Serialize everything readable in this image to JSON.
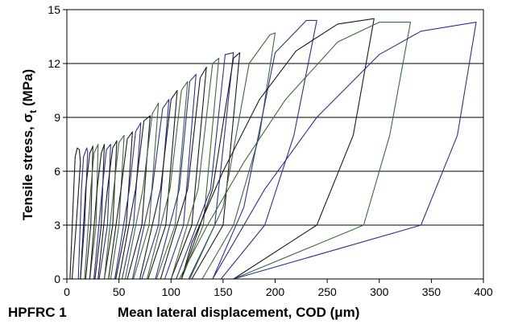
{
  "chart_data": {
    "type": "line",
    "title": "",
    "corner_label": "HPFRC 1",
    "xlabel": "Mean lateral displacement, COD (μm)",
    "ylabel_main": "Tensile stress, σ",
    "ylabel_sub": "t",
    "ylabel_unit": " (MPa)",
    "xlim": [
      0,
      400
    ],
    "ylim": [
      0,
      15
    ],
    "xticks": [
      0,
      50,
      100,
      150,
      200,
      250,
      300,
      350,
      400
    ],
    "yticks": [
      0,
      3,
      6,
      9,
      12,
      15
    ],
    "grid": "horizontal",
    "legend": "none",
    "colors": {
      "black": "#1a1a1a",
      "green": "#3d6b3a",
      "blue": "#2b2fa0",
      "grid": "#000000"
    },
    "series": [
      {
        "color": "black",
        "values": [
          [
            3,
            0
          ],
          [
            7,
            5.5
          ],
          [
            8,
            6.8
          ],
          [
            10,
            7.3
          ],
          [
            12,
            7.2
          ],
          [
            13,
            6.5
          ],
          [
            9,
            3
          ],
          [
            5,
            0
          ]
        ]
      },
      {
        "color": "blue",
        "values": [
          [
            11,
            0
          ],
          [
            14,
            5
          ],
          [
            16,
            6.8
          ],
          [
            19,
            7.3
          ],
          [
            20,
            7.1
          ],
          [
            17,
            3
          ],
          [
            13,
            0
          ]
        ]
      },
      {
        "color": "black",
        "values": [
          [
            13,
            0
          ],
          [
            18,
            5
          ],
          [
            22,
            7.0
          ],
          [
            25,
            7.4
          ],
          [
            23,
            3
          ],
          [
            18,
            0
          ]
        ]
      },
      {
        "color": "green",
        "values": [
          [
            17,
            0
          ],
          [
            23,
            5
          ],
          [
            26,
            7.0
          ],
          [
            30,
            7.5
          ],
          [
            28,
            3
          ],
          [
            22,
            0
          ]
        ]
      },
      {
        "color": "black",
        "values": [
          [
            22,
            0
          ],
          [
            29,
            5
          ],
          [
            33,
            7.0
          ],
          [
            36,
            7.5
          ],
          [
            33,
            3
          ],
          [
            27,
            0
          ]
        ]
      },
      {
        "color": "blue",
        "values": [
          [
            26,
            0
          ],
          [
            34,
            5
          ],
          [
            38,
            7.2
          ],
          [
            42,
            7.5
          ],
          [
            39,
            3
          ],
          [
            31,
            0
          ]
        ]
      },
      {
        "color": "black",
        "values": [
          [
            30,
            0
          ],
          [
            39,
            5
          ],
          [
            44,
            7.3
          ],
          [
            48,
            7.7
          ],
          [
            44,
            3
          ],
          [
            36,
            0
          ]
        ]
      },
      {
        "color": "green",
        "values": [
          [
            36,
            0
          ],
          [
            45,
            5
          ],
          [
            50,
            7.6
          ],
          [
            55,
            8.0
          ],
          [
            50,
            3
          ],
          [
            42,
            0
          ]
        ]
      },
      {
        "color": "black",
        "values": [
          [
            40,
            0
          ],
          [
            52,
            5
          ],
          [
            58,
            7.8
          ],
          [
            63,
            8.2
          ],
          [
            57,
            3
          ],
          [
            47,
            0
          ]
        ]
      },
      {
        "color": "blue",
        "values": [
          [
            46,
            0
          ],
          [
            60,
            5
          ],
          [
            66,
            8.2
          ],
          [
            71,
            8.7
          ],
          [
            64,
            3
          ],
          [
            53,
            0
          ]
        ]
      },
      {
        "color": "black",
        "values": [
          [
            50,
            0
          ],
          [
            66,
            5
          ],
          [
            74,
            8.8
          ],
          [
            80,
            9.1
          ],
          [
            72,
            3
          ],
          [
            58,
            0
          ]
        ]
      },
      {
        "color": "green",
        "values": [
          [
            56,
            0
          ],
          [
            73,
            5
          ],
          [
            82,
            9.2
          ],
          [
            88,
            9.8
          ],
          [
            79,
            3
          ],
          [
            64,
            0
          ]
        ]
      },
      {
        "color": "blue",
        "values": [
          [
            63,
            0
          ],
          [
            82,
            5
          ],
          [
            92,
            9.5
          ],
          [
            98,
            10.0
          ],
          [
            88,
            3
          ],
          [
            72,
            0
          ]
        ]
      },
      {
        "color": "black",
        "values": [
          [
            70,
            0
          ],
          [
            90,
            5
          ],
          [
            100,
            10.0
          ],
          [
            106,
            10.5
          ],
          [
            95,
            3
          ],
          [
            78,
            0
          ]
        ]
      },
      {
        "color": "green",
        "values": [
          [
            77,
            0
          ],
          [
            99,
            5
          ],
          [
            110,
            10.5
          ],
          [
            116,
            11.0
          ],
          [
            104,
            3
          ],
          [
            86,
            0
          ]
        ]
      },
      {
        "color": "blue",
        "values": [
          [
            85,
            0
          ],
          [
            108,
            5
          ],
          [
            118,
            11.0
          ],
          [
            124,
            11.4
          ],
          [
            112,
            3
          ],
          [
            94,
            0
          ]
        ]
      },
      {
        "color": "black",
        "values": [
          [
            90,
            0
          ],
          [
            116,
            5
          ],
          [
            128,
            11.2
          ],
          [
            134,
            11.8
          ],
          [
            120,
            3
          ],
          [
            100,
            0
          ]
        ]
      },
      {
        "color": "green",
        "values": [
          [
            100,
            0
          ],
          [
            126,
            5
          ],
          [
            140,
            12.0
          ],
          [
            146,
            12.3
          ],
          [
            131,
            3
          ],
          [
            110,
            0
          ]
        ]
      },
      {
        "color": "blue",
        "values": [
          [
            105,
            0
          ],
          [
            138,
            5
          ],
          [
            152,
            12.5
          ],
          [
            160,
            12.6
          ],
          [
            142,
            3
          ],
          [
            117,
            0
          ]
        ]
      },
      {
        "color": "black",
        "values": [
          [
            110,
            0
          ],
          [
            140,
            5
          ],
          [
            160,
            12.3
          ],
          [
            166,
            12.6
          ],
          [
            150,
            3
          ],
          [
            120,
            0
          ]
        ]
      },
      {
        "color": "green",
        "values": [
          [
            118,
            0
          ],
          [
            150,
            4
          ],
          [
            175,
            12.0
          ],
          [
            195,
            13.6
          ],
          [
            200,
            13.7
          ],
          [
            185,
            8
          ],
          [
            160,
            3
          ],
          [
            130,
            0
          ]
        ]
      },
      {
        "color": "blue",
        "values": [
          [
            140,
            0
          ],
          [
            170,
            4
          ],
          [
            200,
            12.6
          ],
          [
            230,
            14.4
          ],
          [
            240,
            14.4
          ],
          [
            218,
            8
          ],
          [
            190,
            3
          ],
          [
            148,
            0
          ]
        ]
      },
      {
        "color": "black",
        "values": [
          [
            110,
            0
          ],
          [
            120,
            2
          ],
          [
            150,
            6
          ],
          [
            185,
            10
          ],
          [
            220,
            12.7
          ],
          [
            260,
            14.2
          ],
          [
            295,
            14.5
          ],
          [
            275,
            8
          ],
          [
            240,
            3
          ],
          [
            160,
            0
          ]
        ]
      },
      {
        "color": "green",
        "values": [
          [
            108,
            0
          ],
          [
            135,
            3
          ],
          [
            170,
            6.5
          ],
          [
            210,
            10
          ],
          [
            260,
            13.2
          ],
          [
            300,
            14.3
          ],
          [
            330,
            14.3
          ],
          [
            310,
            8
          ],
          [
            285,
            3
          ],
          [
            160,
            0
          ]
        ]
      },
      {
        "color": "blue",
        "values": [
          [
            140,
            0
          ],
          [
            160,
            2
          ],
          [
            190,
            5
          ],
          [
            240,
            9
          ],
          [
            300,
            12.5
          ],
          [
            340,
            13.8
          ],
          [
            393,
            14.3
          ],
          [
            375,
            8
          ],
          [
            340,
            3
          ],
          [
            160,
            0
          ]
        ]
      }
    ]
  }
}
